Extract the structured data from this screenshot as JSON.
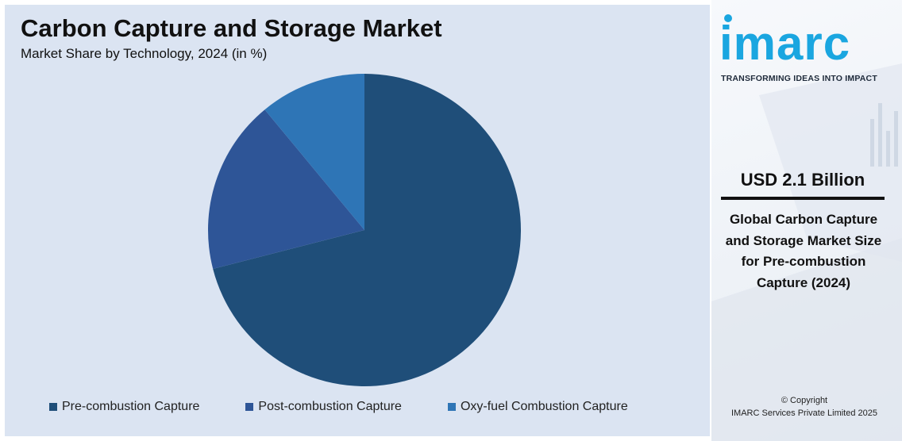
{
  "chart": {
    "title": "Carbon Capture and Storage Market",
    "subtitle": "Market Share by Technology, 2024 (in %)",
    "legend": [
      {
        "label": "Pre-combustion Capture",
        "color": "#1f4e79"
      },
      {
        "label": "Post-combustion Capture",
        "color": "#2e5597"
      },
      {
        "label": "Oxy-fuel Combustion Capture",
        "color": "#2e75b6"
      }
    ]
  },
  "chart_data": {
    "type": "pie",
    "title": "Carbon Capture and Storage Market",
    "subtitle": "Market Share by Technology, 2024 (in %)",
    "categories": [
      "Pre-combustion Capture",
      "Post-combustion Capture",
      "Oxy-fuel Combustion Capture"
    ],
    "values": [
      71,
      18,
      11
    ],
    "colors": [
      "#1f4e79",
      "#2e5597",
      "#2e75b6"
    ],
    "start": "12 o'clock, clockwise",
    "legend_position": "bottom"
  },
  "side": {
    "logo_text": "imarc",
    "tagline": "TRANSFORMING IDEAS INTO IMPACT",
    "value": "USD 2.1 Billion",
    "description": "Global Carbon Capture and Storage Market Size for Pre-combustion Capture (2024)",
    "copyright_line1": "© Copyright",
    "copyright_line2": "IMARC Services Private Limited 2025"
  }
}
